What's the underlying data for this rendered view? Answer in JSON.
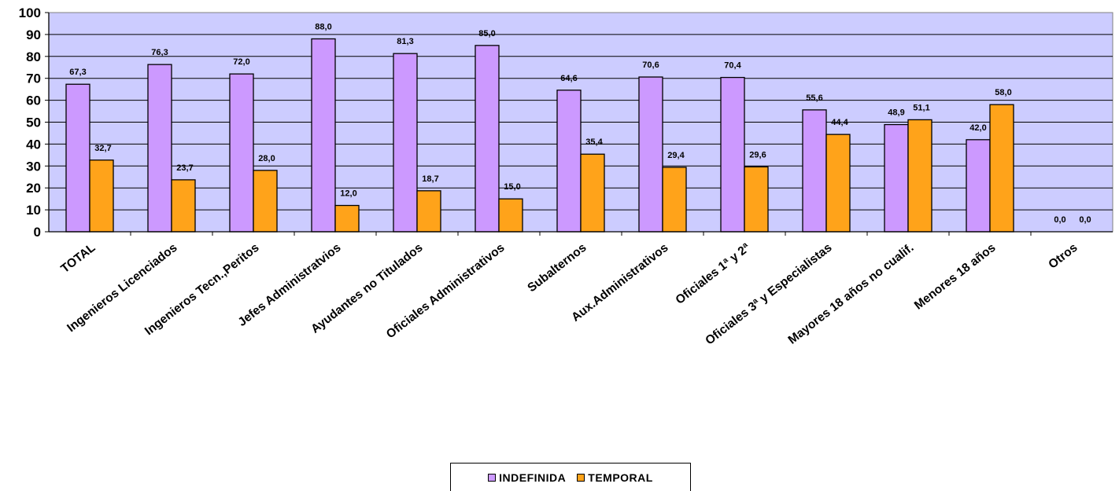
{
  "chart_data": {
    "type": "bar",
    "categories": [
      "TOTAL",
      "Ingenieros Licenciados",
      "Ingenieros Tecn.,Peritos",
      "Jefes Administratvios",
      "Ayudantes no Titulados",
      "Oficiales Administrativos",
      "Subalternos",
      "Aux.Administrativos",
      "Oficiales 1ª y 2ª",
      "Oficiales 3ª y Especialistas",
      "Mayores 18 años no cualif.",
      "Menores 18 años",
      "Otros"
    ],
    "series": [
      {
        "name": "INDEFINIDA",
        "color": "#cc99ff",
        "values": [
          67.3,
          76.3,
          72.0,
          88.0,
          81.3,
          85.0,
          64.6,
          70.6,
          70.4,
          55.6,
          48.9,
          42.0,
          0.0
        ],
        "labels": [
          "67,3",
          "76,3",
          "72,0",
          "88,0",
          "81,3",
          "85,0",
          "64,6",
          "70,6",
          "70,4",
          "55,6",
          "48,9",
          "42,0",
          "0,0"
        ]
      },
      {
        "name": "TEMPORAL",
        "color": "#ffa31a",
        "values": [
          32.7,
          23.7,
          28.0,
          12.0,
          18.7,
          15.0,
          35.4,
          29.4,
          29.6,
          44.4,
          51.1,
          58.0,
          0.0
        ],
        "labels": [
          "32,7",
          "23,7",
          "28,0",
          "12,0",
          "18,7",
          "15,0",
          "35,4",
          "29,4",
          "29,6",
          "44,4",
          "51,1",
          "58,0",
          "0,0"
        ]
      }
    ],
    "ylim": [
      0,
      100
    ],
    "yticks": [
      "0",
      "10",
      "20",
      "30",
      "40",
      "50",
      "60",
      "70",
      "80",
      "90",
      "100"
    ],
    "grid": true,
    "plot_background": "#ccccff",
    "legend_position": "bottom-center",
    "title": "",
    "xlabel": "",
    "ylabel": ""
  }
}
